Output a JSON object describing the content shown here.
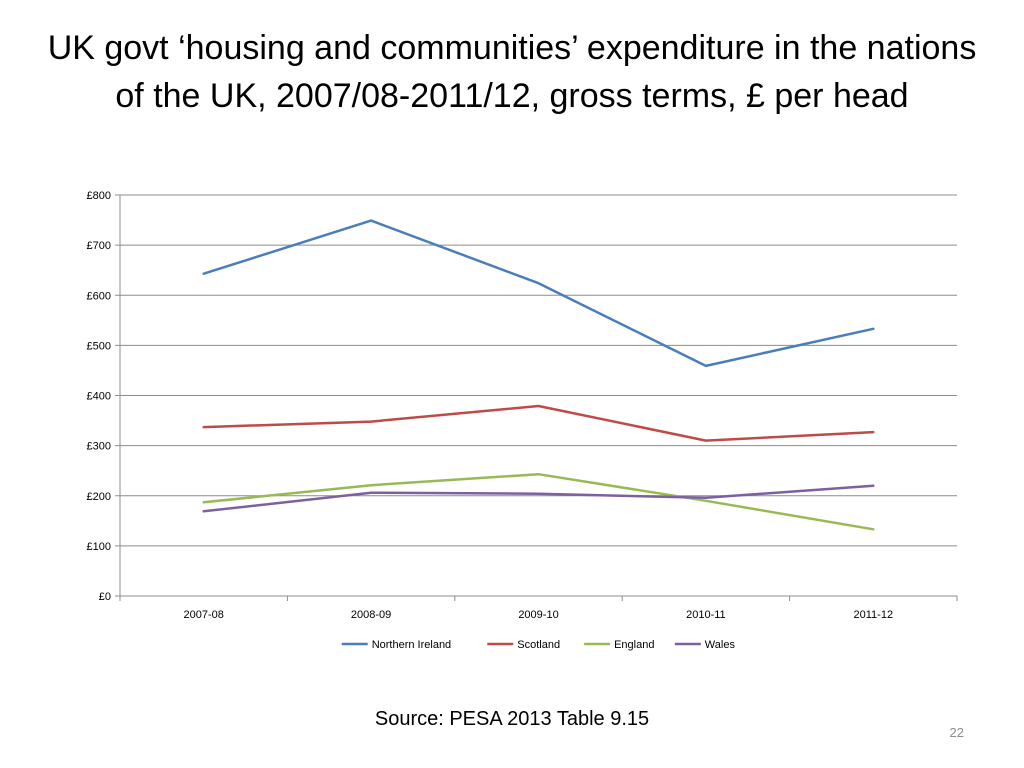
{
  "slide": {
    "title": "UK govt ‘housing and communities’ expenditure in the nations of the UK, 2007/08-2011/12, gross terms, £ per head",
    "source": "Source: PESA 2013 Table 9.15",
    "page_number": "22"
  },
  "chart_data": {
    "type": "line",
    "title": "",
    "xlabel": "",
    "ylabel": "",
    "categories": [
      "2007-08",
      "2008-09",
      "2009-10",
      "2010-11",
      "2011-12"
    ],
    "yticks": [
      "£0",
      "£100",
      "£200",
      "£300",
      "£400",
      "£500",
      "£600",
      "£700",
      "£800"
    ],
    "ylim": [
      0,
      800
    ],
    "grid": true,
    "legend_position": "bottom",
    "series": [
      {
        "name": "Northern Ireland",
        "color": "#4a7ebb",
        "values": [
          643,
          749,
          624,
          459,
          533
        ]
      },
      {
        "name": "Scotland",
        "color": "#be4b48",
        "values": [
          337,
          348,
          379,
          310,
          327
        ]
      },
      {
        "name": "England",
        "color": "#98b954",
        "values": [
          187,
          221,
          243,
          190,
          133
        ]
      },
      {
        "name": "Wales",
        "color": "#7d60a0",
        "values": [
          169,
          206,
          204,
          196,
          220
        ]
      }
    ]
  }
}
